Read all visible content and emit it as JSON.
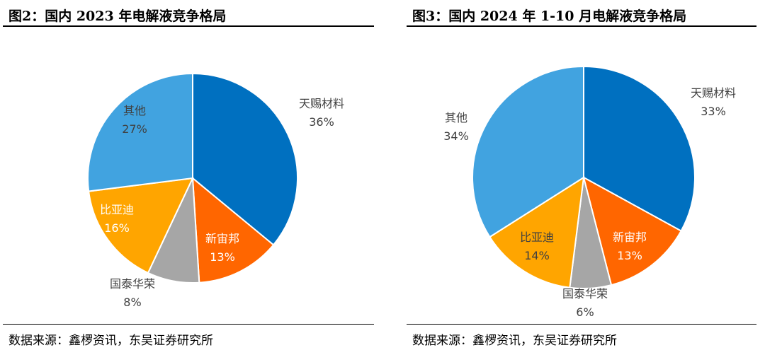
{
  "source_text": "数据来源：鑫椤资讯，东吴证券研究所",
  "chart_data": [
    {
      "type": "pie",
      "title": "图2：国内 2023 年电解液竞争格局",
      "colors": [
        "#0070C0",
        "#FF6600",
        "#A6A6A6",
        "#FFA500",
        "#41A3E0"
      ],
      "label_colors": [
        "#404040",
        "#404040",
        "#404040",
        "#404040",
        "#404040"
      ],
      "slices": [
        {
          "name": "天赐材料",
          "value": 36,
          "label": "36%"
        },
        {
          "name": "新宙邦",
          "value": 13,
          "label": "13%"
        },
        {
          "name": "国泰华荣",
          "value": 8,
          "label": "8%"
        },
        {
          "name": "比亚迪",
          "value": 16,
          "label": "16%"
        },
        {
          "name": "其他",
          "value": 27,
          "label": "27%"
        }
      ]
    },
    {
      "type": "pie",
      "title": "图3：国内 2024 年 1-10 月电解液竞争格局",
      "colors": [
        "#0070C0",
        "#FF6600",
        "#A6A6A6",
        "#FFA500",
        "#41A3E0"
      ],
      "slices": [
        {
          "name": "天赐材料",
          "value": 33,
          "label": "33%"
        },
        {
          "name": "新宙邦",
          "value": 13,
          "label": "13%"
        },
        {
          "name": "国泰华荣",
          "value": 6,
          "label": "6%"
        },
        {
          "name": "比亚迪",
          "value": 14,
          "label": "14%"
        },
        {
          "name": "其他",
          "value": 34,
          "label": "34%"
        }
      ]
    }
  ]
}
